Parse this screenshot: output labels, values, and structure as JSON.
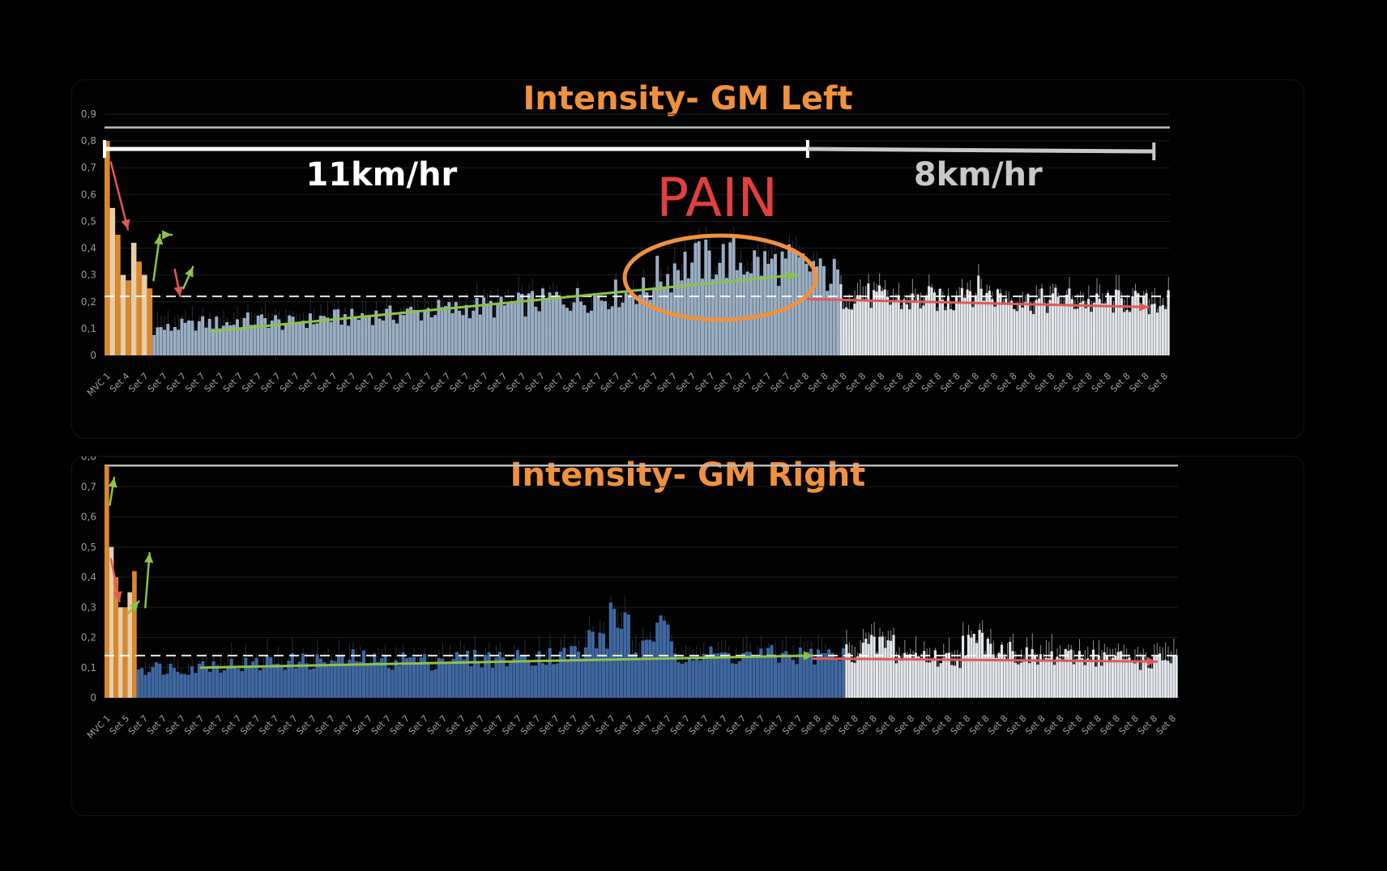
{
  "colors": {
    "background": "#000000",
    "title": "#f0913f",
    "fast_bar": "#9aaec3",
    "fast_bar_right": "#3f67a0",
    "slow_bar": "#e4e7ec",
    "mvc_bar": "#d9882e",
    "trend_up": "#8bc34a",
    "trend_down": "#e05a57",
    "pain": "#e0403f",
    "pain_circle": "#f0913f",
    "speed_fast": "#ffffff",
    "speed_slow": "#c8c8c8"
  },
  "annotations": {
    "speed_fast": "11km/hr",
    "speed_slow": "8km/hr",
    "pain": "PAIN"
  },
  "chart_data": [
    {
      "type": "bar",
      "title": "Intensity- GM Left",
      "ylim": [
        0,
        0.9
      ],
      "yticks": [
        "0",
        "0,1",
        "0,2",
        "0,3",
        "0,4",
        "0,5",
        "0,6",
        "0,7",
        "0,8",
        "0,9"
      ],
      "x_tick_labels": [
        "MVC 1",
        "Set 4",
        "Set 7",
        "Set 7",
        "Set 7",
        "Set 7",
        "Set 7",
        "Set 7",
        "Set 7",
        "Set 7",
        "Set 7",
        "Set 7",
        "Set 7",
        "Set 7",
        "Set 7",
        "Set 7",
        "Set 7",
        "Set 7",
        "Set 7",
        "Set 7",
        "Set 7",
        "Set 7",
        "Set 7",
        "Set 7",
        "Set 7",
        "Set 7",
        "Set 7",
        "Set 7",
        "Set 7",
        "Set 7",
        "Set 7",
        "Set 7",
        "Set 7",
        "Set 7",
        "Set 7",
        "Set 7",
        "Set 7",
        "Set 8",
        "Set 8",
        "Set 8",
        "Set 8",
        "Set 8",
        "Set 8",
        "Set 8",
        "Set 8",
        "Set 8",
        "Set 8",
        "Set 8",
        "Set 8",
        "Set 8",
        "Set 8",
        "Set 8",
        "Set 8",
        "Set 8",
        "Set 8",
        "Set 8",
        "Set 8"
      ],
      "max_line": 0.85,
      "threshold": 0.22,
      "series": [
        {
          "values": [
            0.8,
            0.55,
            0.45,
            0.3,
            0.28,
            0.42,
            0.35,
            0.3,
            0.25
          ]
        },
        {
          "values": [
            0.1,
            0.11,
            0.12,
            0.12,
            0.13,
            0.13,
            0.12,
            0.13,
            0.14,
            0.14,
            0.15,
            0.15,
            0.16,
            0.17,
            0.17,
            0.18,
            0.18,
            0.19,
            0.2,
            0.21,
            0.21,
            0.22,
            0.23,
            0.24,
            0.3,
            0.34,
            0.35,
            0.36,
            0.35,
            0.34,
            0.34,
            0.33,
            0.3
          ]
        },
        {
          "values": [
            0.22,
            0.22,
            0.21,
            0.2,
            0.2,
            0.21,
            0.2,
            0.25,
            0.24,
            0.22,
            0.21,
            0.2,
            0.2,
            0.21,
            0.2,
            0.19,
            0.2,
            0.2,
            0.19,
            0.2
          ]
        }
      ],
      "trends": [
        {
          "x": [
            0.6,
            2.2
          ],
          "y": [
            0.72,
            0.47
          ]
        },
        {
          "x": [
            4.6,
            5.2
          ],
          "y": [
            0.28,
            0.45
          ]
        },
        {
          "x": [
            5.6,
            6.3
          ],
          "y": [
            0.45,
            0.45
          ]
        },
        {
          "x": [
            6.6,
            7.1
          ],
          "y": [
            0.32,
            0.22
          ]
        },
        {
          "x": [
            7.4,
            8.3
          ],
          "y": [
            0.25,
            0.33
          ]
        },
        {
          "x": [
            10,
            65
          ],
          "y": [
            0.09,
            0.3
          ]
        },
        {
          "x": [
            66,
            98
          ],
          "y": [
            0.21,
            0.18
          ]
        }
      ]
    },
    {
      "type": "bar",
      "title": "Intensity- GM Right",
      "ylim": [
        0,
        0.8
      ],
      "yticks": [
        "0",
        "0,1",
        "0,2",
        "0,3",
        "0,4",
        "0,5",
        "0,6",
        "0,7",
        "0,8"
      ],
      "x_tick_labels": [
        "MVC 1",
        "Set 5",
        "Set 7",
        "Set 7",
        "Set 7",
        "Set 7",
        "Set 7",
        "Set 7",
        "Set 7",
        "Set 7",
        "Set 7",
        "Set 7",
        "Set 7",
        "Set 7",
        "Set 7",
        "Set 7",
        "Set 7",
        "Set 7",
        "Set 7",
        "Set 7",
        "Set 7",
        "Set 7",
        "Set 7",
        "Set 7",
        "Set 7",
        "Set 7",
        "Set 7",
        "Set 7",
        "Set 7",
        "Set 7",
        "Set 7",
        "Set 7",
        "Set 7",
        "Set 7",
        "Set 7",
        "Set 7",
        "Set 7",
        "Set 7",
        "Set 8",
        "Set 8",
        "Set 8",
        "Set 8",
        "Set 8",
        "Set 8",
        "Set 8",
        "Set 8",
        "Set 8",
        "Set 8",
        "Set 8",
        "Set 8",
        "Set 8",
        "Set 8",
        "Set 8",
        "Set 8",
        "Set 8",
        "Set 8",
        "Set 8",
        "Set 8"
      ],
      "max_line": 0.77,
      "threshold": 0.14,
      "series": [
        {
          "values": [
            0.77,
            0.5,
            0.4,
            0.3,
            0.3,
            0.35,
            0.42
          ]
        },
        {
          "values": [
            0.1,
            0.1,
            0.1,
            0.11,
            0.11,
            0.11,
            0.12,
            0.12,
            0.12,
            0.12,
            0.13,
            0.12,
            0.13,
            0.12,
            0.13,
            0.13,
            0.13,
            0.13,
            0.14,
            0.14,
            0.15,
            0.2,
            0.26,
            0.16,
            0.22,
            0.15,
            0.14,
            0.14,
            0.14,
            0.14,
            0.14,
            0.14,
            0.14
          ]
        },
        {
          "values": [
            0.15,
            0.17,
            0.18,
            0.14,
            0.14,
            0.13,
            0.13,
            0.18,
            0.19,
            0.16,
            0.14,
            0.13,
            0.13,
            0.13,
            0.14,
            0.13,
            0.13,
            0.12,
            0.12,
            0.13
          ]
        }
      ],
      "trends": [
        {
          "x": [
            0.5,
            0.9
          ],
          "y": [
            0.64,
            0.73
          ]
        },
        {
          "x": [
            0.6,
            1.4
          ],
          "y": [
            0.46,
            0.32
          ]
        },
        {
          "x": [
            2.2,
            3.2
          ],
          "y": [
            0.28,
            0.32
          ]
        },
        {
          "x": [
            3.8,
            4.2
          ],
          "y": [
            0.3,
            0.48
          ]
        },
        {
          "x": [
            9,
            66
          ],
          "y": [
            0.1,
            0.14
          ]
        },
        {
          "x": [
            66,
            98
          ],
          "y": [
            0.13,
            0.12
          ]
        }
      ]
    }
  ]
}
